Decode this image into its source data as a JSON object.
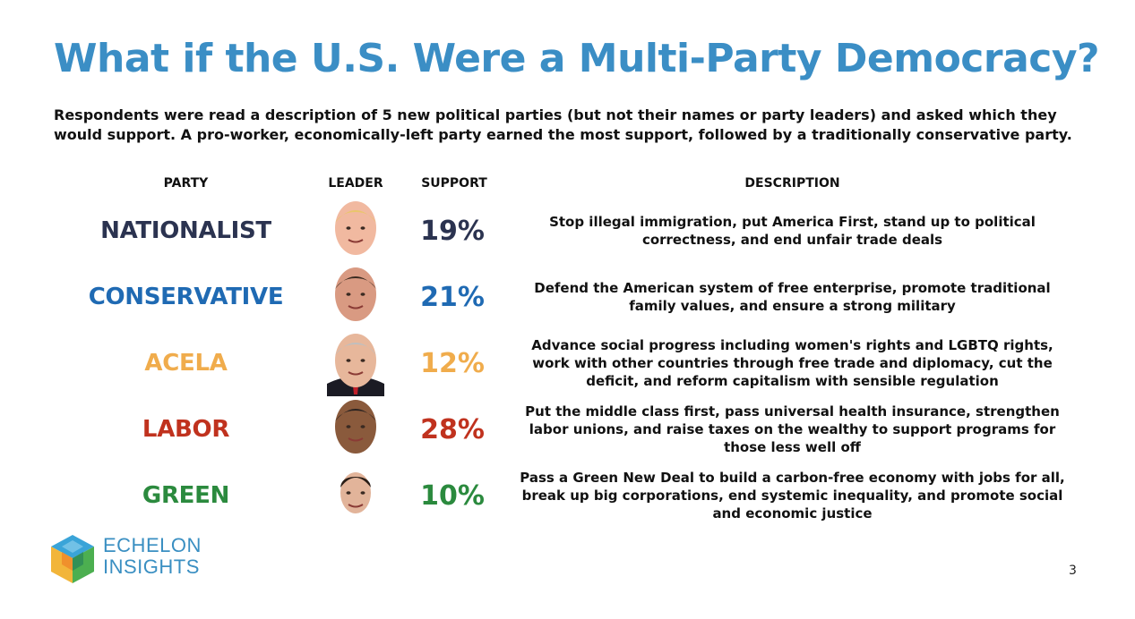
{
  "title": "What if the U.S. Were a Multi-Party Democracy?",
  "subtitle": "Respondents were read a description of 5 new political parties (but not their names or party leaders) and asked which they would support. A pro-worker, economically-left party earned the most support, followed by a traditionally conservative party.",
  "headers": {
    "party": "PARTY",
    "leader": "LEADER",
    "support": "SUPPORT",
    "description": "DESCRIPTION"
  },
  "chart_data": {
    "type": "table",
    "columns": [
      "PARTY",
      "LEADER",
      "SUPPORT",
      "DESCRIPTION"
    ],
    "rows": [
      {
        "party": "NATIONALIST",
        "support": "19%",
        "value": 19,
        "color": "#2b3350",
        "leader_icon": "leader-portrait-icon",
        "description": "Stop illegal immigration, put America First, stand up to political correctness, and end unfair trade deals"
      },
      {
        "party": "CONSERVATIVE",
        "support": "21%",
        "value": 21,
        "color": "#1f6ab3",
        "leader_icon": "leader-portrait-icon",
        "description": "Defend the American system of free enterprise, promote traditional family values, and ensure a strong military"
      },
      {
        "party": "ACELA",
        "support": "12%",
        "value": 12,
        "color": "#f0ac4c",
        "leader_icon": "leader-portrait-icon",
        "description": "Advance social progress including women's rights and LGBTQ rights, work with other countries through free trade and diplomacy, cut the deficit, and reform capitalism with sensible regulation"
      },
      {
        "party": "LABOR",
        "support": "28%",
        "value": 28,
        "color": "#c0321e",
        "leader_icon": "leader-portrait-icon",
        "description": "Put the middle class first, pass universal health insurance, strengthen labor unions, and raise taxes on the wealthy to support programs for those less well off"
      },
      {
        "party": "GREEN",
        "support": "10%",
        "value": 10,
        "color": "#2b8a3e",
        "leader_icon": "leader-portrait-icon",
        "description": "Pass a Green New Deal to build a carbon-free economy with jobs for all, break up big corporations, end systemic inequality, and promote social and economic justice"
      }
    ]
  },
  "brand": {
    "line1": "ECHELON",
    "line2": "INSIGHTS",
    "color": "#3a8fc2",
    "icon": "cube-logo-icon"
  },
  "page_number": "3"
}
